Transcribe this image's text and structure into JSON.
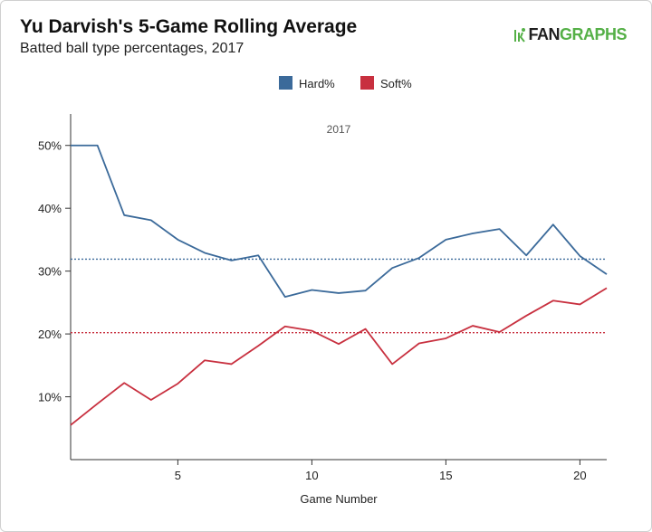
{
  "brand": {
    "part1": "FAN",
    "part2": "GRAPHS",
    "colors": {
      "dark": "#1f1f1f",
      "green": "#55b047"
    },
    "icon": "runner-icon"
  },
  "chart_data": {
    "type": "line",
    "title": "Yu Darvish's 5-Game Rolling Average",
    "subtitle": "Batted ball type percentages, 2017",
    "facet_label": "2017",
    "xlabel": "Game Number",
    "ylabel": "",
    "xlim": [
      1,
      21
    ],
    "ylim": [
      0,
      0.55
    ],
    "x_ticks": [
      5,
      10,
      15,
      20
    ],
    "y_ticks": [
      0.1,
      0.2,
      0.3,
      0.4,
      0.5
    ],
    "y_tick_labels": [
      "10%",
      "20%",
      "30%",
      "40%",
      "50%"
    ],
    "legend": {
      "placement": "top-center"
    },
    "grid": false,
    "x": [
      1,
      2,
      3,
      4,
      5,
      6,
      7,
      8,
      9,
      10,
      11,
      12,
      13,
      14,
      15,
      16,
      17,
      18,
      19,
      20,
      21
    ],
    "series": [
      {
        "name": "Hard%",
        "color": "#3b6a9a",
        "values": [
          0.5,
          0.5,
          0.389,
          0.381,
          0.35,
          0.329,
          0.317,
          0.325,
          0.259,
          0.27,
          0.265,
          0.269,
          0.305,
          0.321,
          0.35,
          0.36,
          0.367,
          0.325,
          0.374,
          0.324,
          0.295
        ],
        "average": 0.319
      },
      {
        "name": "Soft%",
        "color": "#c8303f",
        "values": [
          0.055,
          0.089,
          0.122,
          0.095,
          0.121,
          0.158,
          0.152,
          0.181,
          0.212,
          0.205,
          0.184,
          0.208,
          0.152,
          0.185,
          0.193,
          0.213,
          0.203,
          0.229,
          0.253,
          0.247,
          0.273
        ],
        "average": 0.202
      }
    ]
  }
}
